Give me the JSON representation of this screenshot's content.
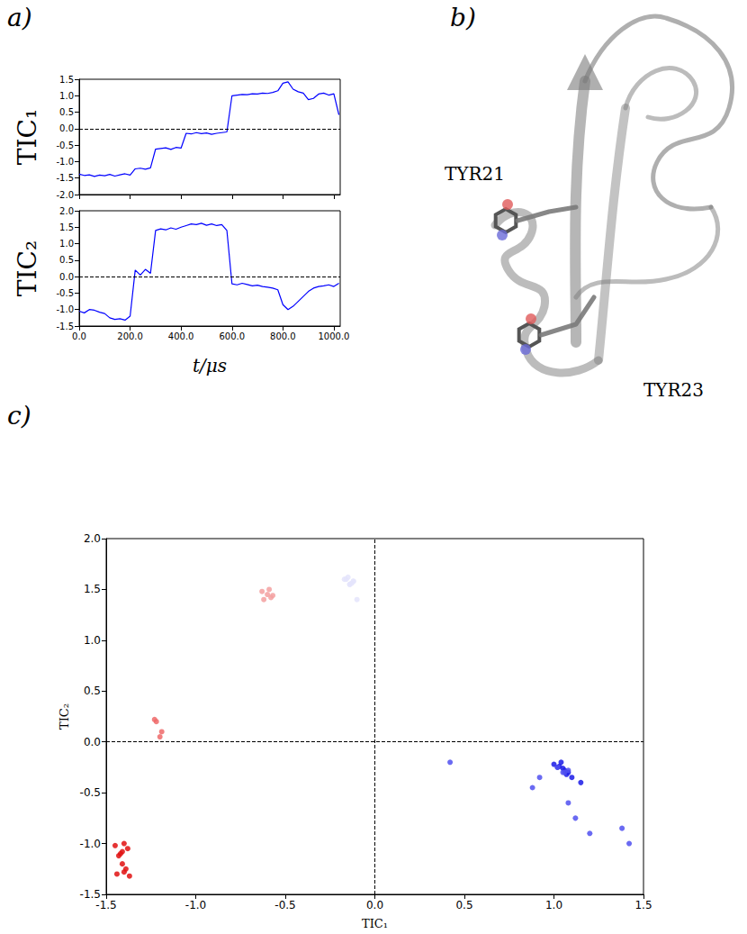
{
  "chart_data": [
    {
      "panel": "a)",
      "type": "line",
      "y_label": "TIC₁",
      "color": "#0000ff",
      "tick_labels": "y",
      "x": [
        0,
        20,
        40,
        60,
        80,
        100,
        120,
        140,
        160,
        180,
        200,
        220,
        240,
        260,
        280,
        300,
        320,
        340,
        360,
        380,
        400,
        420,
        440,
        460,
        480,
        500,
        520,
        540,
        560,
        580,
        600,
        620,
        640,
        660,
        680,
        700,
        720,
        740,
        760,
        780,
        800,
        820,
        840,
        860,
        880,
        900,
        920,
        940,
        960,
        980,
        1000,
        1020
      ],
      "values": [
        -1.38,
        -1.42,
        -1.4,
        -1.45,
        -1.41,
        -1.43,
        -1.39,
        -1.44,
        -1.4,
        -1.37,
        -1.41,
        -1.22,
        -1.2,
        -1.23,
        -1.19,
        -0.62,
        -0.6,
        -0.58,
        -0.63,
        -0.57,
        -0.59,
        -0.14,
        -0.16,
        -0.12,
        -0.15,
        -0.13,
        -0.17,
        -0.14,
        -0.12,
        -0.1,
        1.0,
        1.02,
        1.04,
        1.03,
        1.06,
        1.05,
        1.08,
        1.07,
        1.1,
        1.15,
        1.38,
        1.42,
        1.2,
        1.12,
        1.08,
        0.88,
        0.92,
        1.05,
        1.08,
        1.02,
        1.06,
        0.42
      ],
      "xlim": [
        0,
        1025
      ],
      "xticks": [
        {
          "value": 0,
          "label": "0.0"
        },
        {
          "value": 200,
          "label": "200.0"
        },
        {
          "value": 400,
          "label": "400.0"
        },
        {
          "value": 600,
          "label": "600.0"
        },
        {
          "value": 800,
          "label": "800.0"
        },
        {
          "value": 1000,
          "label": "1000.0"
        }
      ],
      "ylim": [
        -2.0,
        1.5
      ],
      "yticks": [
        {
          "value": -2.0,
          "label": "-2.0"
        },
        -1.5,
        {
          "value": -1.0,
          "label": "-1.0"
        },
        -0.5,
        {
          "value": 0,
          "label": "0.0"
        },
        0.5,
        {
          "value": 1.0,
          "label": "1.0"
        },
        1.5
      ],
      "hlines": [
        0
      ],
      "grid": false
    },
    {
      "type": "line",
      "y_label": "TIC₂",
      "x_label": "t/μs",
      "color": "#0000ff",
      "x": [
        0,
        20,
        40,
        60,
        80,
        100,
        120,
        140,
        160,
        180,
        200,
        220,
        240,
        260,
        280,
        300,
        320,
        340,
        360,
        380,
        400,
        420,
        440,
        460,
        480,
        500,
        520,
        540,
        560,
        580,
        600,
        620,
        640,
        660,
        680,
        700,
        720,
        740,
        760,
        780,
        800,
        820,
        840,
        860,
        880,
        900,
        920,
        940,
        960,
        980,
        1000,
        1020
      ],
      "values": [
        -1.05,
        -1.1,
        -1.0,
        -1.02,
        -1.08,
        -1.12,
        -1.25,
        -1.3,
        -1.28,
        -1.32,
        -1.2,
        0.2,
        0.05,
        0.22,
        0.1,
        1.4,
        1.45,
        1.42,
        1.48,
        1.44,
        1.5,
        1.55,
        1.6,
        1.58,
        1.62,
        1.56,
        1.6,
        1.55,
        1.58,
        1.4,
        -0.22,
        -0.25,
        -0.2,
        -0.24,
        -0.28,
        -0.26,
        -0.3,
        -0.32,
        -0.35,
        -0.4,
        -0.85,
        -1.0,
        -0.9,
        -0.75,
        -0.6,
        -0.45,
        -0.35,
        -0.3,
        -0.28,
        -0.25,
        -0.3,
        -0.2
      ],
      "xlim": [
        0,
        1025
      ],
      "xticks": [
        {
          "value": 0,
          "label": "0.0"
        },
        {
          "value": 200,
          "label": "200.0"
        },
        {
          "value": 400,
          "label": "400.0"
        },
        {
          "value": 600,
          "label": "600.0"
        },
        {
          "value": 800,
          "label": "800.0"
        },
        {
          "value": 1000,
          "label": "1000.0"
        }
      ],
      "ylim": [
        -1.5,
        2.0
      ],
      "yticks": [
        -1.5,
        {
          "value": -1.0,
          "label": "-1.0"
        },
        -0.5,
        {
          "value": 0,
          "label": "0.0"
        },
        0.5,
        {
          "value": 1.0,
          "label": "1.0"
        },
        1.5,
        {
          "value": 2.0,
          "label": "2.0"
        }
      ],
      "hlines": [
        0
      ],
      "grid": false
    },
    {
      "panel": "c)",
      "type": "scatter",
      "x_label": "TIC₁",
      "y_label": "TIC₂",
      "marker": "circle",
      "x": [
        -1.38,
        -1.42,
        -1.4,
        -1.45,
        -1.41,
        -1.43,
        -1.39,
        -1.44,
        -1.4,
        -1.37,
        -1.41,
        -1.22,
        -1.2,
        -1.23,
        -1.19,
        -0.62,
        -0.6,
        -0.58,
        -0.63,
        -0.57,
        -0.59,
        -0.14,
        -0.16,
        -0.12,
        -0.15,
        -0.13,
        -0.17,
        -0.14,
        -0.12,
        -0.1,
        1.0,
        1.02,
        1.04,
        1.03,
        1.06,
        1.05,
        1.08,
        1.07,
        1.1,
        1.15,
        1.38,
        1.42,
        1.2,
        1.12,
        1.08,
        0.88,
        0.92,
        1.05,
        1.08,
        1.02,
        1.06,
        0.42
      ],
      "values": [
        -1.05,
        -1.1,
        -1.0,
        -1.02,
        -1.08,
        -1.12,
        -1.25,
        -1.3,
        -1.28,
        -1.32,
        -1.2,
        0.2,
        0.05,
        0.22,
        0.1,
        1.4,
        1.45,
        1.42,
        1.48,
        1.44,
        1.5,
        1.55,
        1.6,
        1.58,
        1.62,
        1.56,
        1.6,
        1.55,
        1.58,
        1.4,
        -0.22,
        -0.25,
        -0.2,
        -0.24,
        -0.28,
        -0.26,
        -0.3,
        -0.32,
        -0.35,
        -0.4,
        -0.85,
        -1.0,
        -0.9,
        -0.75,
        -0.6,
        -0.45,
        -0.35,
        -0.3,
        -0.28,
        -0.25,
        -0.3,
        -0.2
      ],
      "colors": [
        "#e01010",
        "#e01010",
        "#e01010",
        "#e01010",
        "#e01010",
        "#e01010",
        "#e01010",
        "#e01010",
        "#e01010",
        "#e01010",
        "#e01010",
        "#ee6a6a",
        "#ee6a6a",
        "#ee6a6a",
        "#ee6a6a",
        "#f3a0a0",
        "#f3a0a0",
        "#f3a0a0",
        "#f3a0a0",
        "#f3a0a0",
        "#f3a0a0",
        "#e4e4fb",
        "#e4e4fb",
        "#e4e4fb",
        "#e4e4fb",
        "#e4e4fb",
        "#e4e4fb",
        "#e4e4fb",
        "#e4e4fb",
        "#e4e4fb",
        "#1a1ae6",
        "#1a1ae6",
        "#1a1ae6",
        "#1a1ae6",
        "#1a1ae6",
        "#1a1ae6",
        "#1a1ae6",
        "#1a1ae6",
        "#1a1ae6",
        "#1a1ae6",
        "#5050f0",
        "#5050f0",
        "#5050f0",
        "#5050f0",
        "#5050f0",
        "#5050f0",
        "#5050f0",
        "#5050f0",
        "#5050f0",
        "#5050f0",
        "#5050f0",
        "#5050f0"
      ],
      "xlim": [
        -1.5,
        1.5
      ],
      "xticks": [
        -1.5,
        {
          "value": -1.0,
          "label": "-1.0"
        },
        -0.5,
        {
          "value": 0,
          "label": "0.0"
        },
        0.5,
        {
          "value": 1.0,
          "label": "1.0"
        },
        1.5
      ],
      "ylim": [
        -1.5,
        2.0
      ],
      "yticks": [
        -1.5,
        {
          "value": -1.0,
          "label": "-1.0"
        },
        -0.5,
        {
          "value": 0,
          "label": "0.0"
        },
        0.5,
        {
          "value": 1.0,
          "label": "1.0"
        },
        1.5,
        {
          "value": 2.0,
          "label": "2.0"
        }
      ],
      "hlines": [
        0
      ],
      "vlines": [
        0
      ],
      "grid": false
    }
  ],
  "diagram": {
    "panel": "b)",
    "labels": [
      "TYR21",
      "TYR23"
    ]
  }
}
